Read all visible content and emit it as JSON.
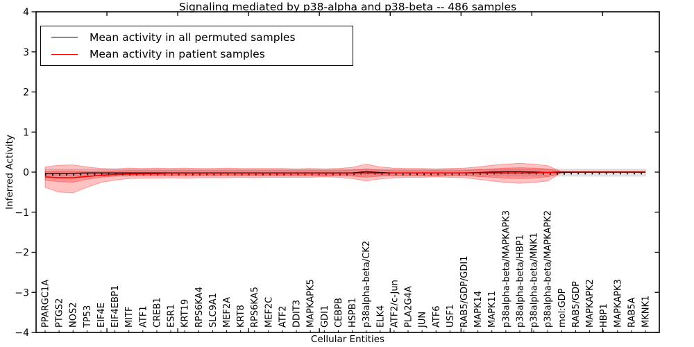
{
  "title": "Signaling mediated by p38-alpha and p38-beta -- 486 samples",
  "chart_data": {
    "type": "line",
    "title": "Signaling mediated by p38-alpha and p38-beta -- 486 samples",
    "xlabel": "Cellular Entities",
    "ylabel": "Inferred Activity",
    "ylim": [
      -4,
      4
    ],
    "yticks": [
      4,
      3,
      2,
      1,
      0,
      -1,
      -2,
      -3,
      -4
    ],
    "ytick_labels": [
      "4",
      "3",
      "2",
      "1",
      "0",
      "−1",
      "−2",
      "−3",
      "−4"
    ],
    "grid": false,
    "legend_position": "upper left",
    "categories": [
      "PPARGC1A",
      "PTGS2",
      "NOS2",
      "TP53",
      "EIF4E",
      "EIF4EBP1",
      "MITF",
      "ATF1",
      "CREB1",
      "ESR1",
      "KRT19",
      "RPS6KA4",
      "SLC9A1",
      "MEF2A",
      "KRT8",
      "RPS6KA5",
      "MEF2C",
      "ATF2",
      "DDIT3",
      "MAPKAPK5",
      "GDI1",
      "CEBPB",
      "HSPB1",
      "p38alpha-beta/CK2",
      "ELK4",
      "ATF2/c-Jun",
      "PLA2G4A",
      "JUN",
      "ATF6",
      "USF1",
      "RAB5/GDP/GDI1",
      "MAPK14",
      "MAPK11",
      "p38alpha-beta/MAPKAPK3",
      "p38alpha-beta/HBP1",
      "p38alpha-beta/MNK1",
      "p38alpha-beta/MAPKAPK2",
      "mol:GDP",
      "RAB5/GDP",
      "MAPKAPK2",
      "HBP1",
      "MAPKAPK3",
      "RAB5A",
      "MKNK1"
    ],
    "series": [
      {
        "name": "Mean activity in all permuted samples",
        "color": "#000000",
        "values": [
          -0.03,
          -0.03,
          -0.03,
          -0.02,
          -0.02,
          -0.02,
          -0.02,
          -0.02,
          -0.02,
          -0.02,
          -0.02,
          -0.02,
          -0.02,
          -0.02,
          -0.02,
          -0.02,
          -0.02,
          -0.02,
          -0.02,
          -0.02,
          -0.02,
          -0.02,
          -0.02,
          0.01,
          -0.01,
          -0.02,
          -0.02,
          -0.02,
          -0.02,
          -0.02,
          -0.02,
          -0.01,
          0.0,
          0.01,
          0.01,
          0.0,
          -0.01,
          -0.01,
          0.0,
          0.0,
          0.0,
          0.0,
          0.0,
          0.0
        ]
      },
      {
        "name": "Mean activity in patient samples",
        "color": "#ff0000",
        "values": [
          -0.12,
          -0.14,
          -0.14,
          -0.11,
          -0.08,
          -0.06,
          -0.05,
          -0.04,
          -0.04,
          -0.03,
          -0.03,
          -0.03,
          -0.03,
          -0.03,
          -0.03,
          -0.03,
          -0.03,
          -0.03,
          -0.03,
          -0.03,
          -0.03,
          -0.03,
          -0.03,
          -0.02,
          -0.03,
          -0.02,
          -0.02,
          -0.02,
          -0.02,
          -0.02,
          -0.02,
          -0.02,
          -0.02,
          -0.02,
          -0.02,
          -0.02,
          -0.01,
          0.01,
          0.01,
          0.01,
          0.01,
          0.01,
          0.01,
          0.01
        ]
      }
    ],
    "bands": [
      {
        "name": "permuted-samples-spread",
        "fill": "rgba(130,130,130,0.18)",
        "stroke": "rgba(120,120,120,0.30)",
        "top": 0.07,
        "bottom": -0.1
      },
      {
        "name": "patient-samples-spread-outer",
        "fill": "rgba(255,0,0,0.24)",
        "stroke": "rgba(255,0,0,0.32)",
        "top": [
          0.13,
          0.17,
          0.18,
          0.13,
          0.09,
          0.08,
          0.1,
          0.09,
          0.1,
          0.09,
          0.1,
          0.09,
          0.09,
          0.1,
          0.09,
          0.09,
          0.09,
          0.09,
          0.08,
          0.09,
          0.08,
          0.09,
          0.12,
          0.2,
          0.13,
          0.1,
          0.09,
          0.09,
          0.08,
          0.09,
          0.1,
          0.13,
          0.17,
          0.2,
          0.22,
          0.2,
          0.16,
          0.012,
          0.012,
          0.012,
          0.012,
          0.012,
          0.012,
          0.012
        ],
        "bottom": [
          -0.38,
          -0.5,
          -0.52,
          -0.38,
          -0.26,
          -0.2,
          -0.16,
          -0.15,
          -0.15,
          -0.14,
          -0.15,
          -0.14,
          -0.14,
          -0.14,
          -0.13,
          -0.14,
          -0.13,
          -0.13,
          -0.13,
          -0.13,
          -0.12,
          -0.13,
          -0.16,
          -0.22,
          -0.17,
          -0.14,
          -0.13,
          -0.13,
          -0.12,
          -0.13,
          -0.14,
          -0.18,
          -0.22,
          -0.26,
          -0.28,
          -0.26,
          -0.22,
          -0.012,
          -0.012,
          -0.012,
          -0.012,
          -0.012,
          -0.012,
          -0.012
        ]
      },
      {
        "name": "patient-samples-spread-inner",
        "fill": "rgba(255,0,0,0.24)",
        "stroke": "rgba(255,0,0,0.32)",
        "top": [
          0.02,
          0.03,
          0.03,
          0.02,
          0.02,
          0.03,
          0.04,
          0.04,
          0.04,
          0.04,
          0.04,
          0.04,
          0.04,
          0.04,
          0.04,
          0.04,
          0.04,
          0.04,
          0.04,
          0.04,
          0.04,
          0.04,
          0.05,
          0.08,
          0.05,
          0.04,
          0.04,
          0.04,
          0.04,
          0.04,
          0.04,
          0.06,
          0.08,
          0.1,
          0.11,
          0.1,
          0.08,
          0.008,
          0.008,
          0.008,
          0.008,
          0.008,
          0.008,
          0.008
        ],
        "bottom": [
          -0.2,
          -0.24,
          -0.25,
          -0.18,
          -0.13,
          -0.1,
          -0.09,
          -0.08,
          -0.08,
          -0.08,
          -0.08,
          -0.08,
          -0.08,
          -0.08,
          -0.08,
          -0.08,
          -0.08,
          -0.08,
          -0.08,
          -0.08,
          -0.08,
          -0.08,
          -0.1,
          -0.13,
          -0.1,
          -0.08,
          -0.08,
          -0.08,
          -0.08,
          -0.08,
          -0.08,
          -0.11,
          -0.13,
          -0.15,
          -0.16,
          -0.15,
          -0.12,
          -0.008,
          -0.008,
          -0.008,
          -0.008,
          -0.008,
          -0.008,
          -0.008
        ]
      }
    ]
  },
  "legend": {
    "entries": [
      {
        "label": "Mean activity in all permuted samples",
        "color": "#000000"
      },
      {
        "label": "Mean activity in patient samples",
        "color": "#ff0000"
      }
    ]
  }
}
